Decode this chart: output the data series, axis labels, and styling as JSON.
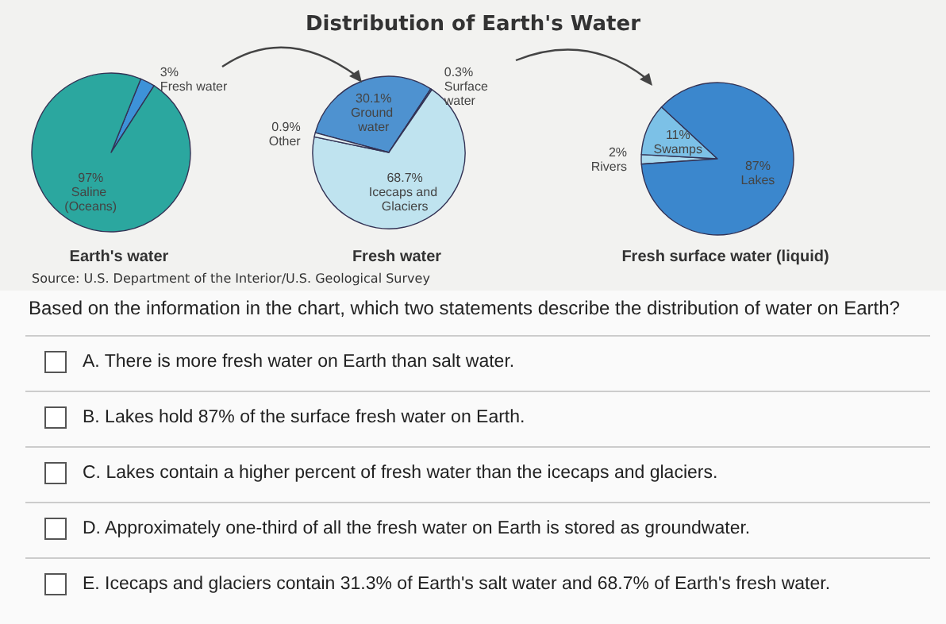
{
  "chart_data": [
    {
      "type": "pie",
      "title": "Distribution of Earth's Water",
      "xlabel": "Earth's water",
      "annotations": [
        "Source: U.S. Department of the Interior/U.S. Geological Survey"
      ],
      "categories": [
        "Fresh water",
        "Saline (Oceans)"
      ],
      "values": [
        3,
        97
      ],
      "value_labels": [
        "3%",
        "97%"
      ],
      "colors": [
        "#3d92d8",
        "#2ba79f"
      ]
    },
    {
      "type": "pie",
      "xlabel": "Fresh water",
      "categories": [
        "Ground water",
        "Surface water",
        "Icecaps and Glaciers",
        "Other"
      ],
      "values": [
        30.1,
        0.3,
        68.7,
        0.9
      ],
      "value_labels": [
        "30.1%",
        "0.3%",
        "68.7%",
        "0.9%"
      ],
      "colors": [
        "#4e92d0",
        "#4a8fcf",
        "#bfe3ef",
        "#e4f0f3"
      ]
    },
    {
      "type": "pie",
      "xlabel": "Fresh surface water (liquid)",
      "categories": [
        "Rivers",
        "Swamps",
        "Lakes"
      ],
      "values": [
        2,
        11,
        87
      ],
      "value_labels": [
        "2%",
        "11%",
        "87%"
      ],
      "colors": [
        "#a9d9ee",
        "#7cc1e7",
        "#3b87cd"
      ]
    },
    {
      "type": "other",
      "title": "Based on the information in the chart, which two statements describe the distribution of water on Earth?",
      "annotations": [
        "A. There is more fresh water on Earth than salt water.",
        "B. Lakes hold 87% of the surface fresh water on Earth.",
        "C. Lakes contain a higher percent of fresh water than the icecaps and glaciers.",
        "D. Approximately one-third of all the fresh water on Earth is stored as groundwater.",
        "E. Icecaps and glaciers contain 31.3% of Earth's salt water and 68.7% of Earth's fresh water."
      ]
    }
  ]
}
